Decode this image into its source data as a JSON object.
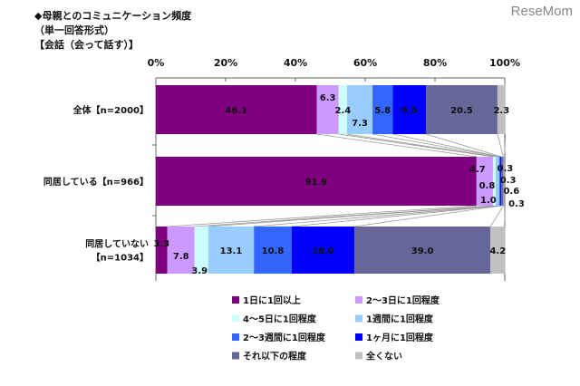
{
  "logo": "ReseMom",
  "chart_data": {
    "type": "bar",
    "orientation": "horizontal-stacked-100",
    "title": "◆母親とのコミュニケーション頻度",
    "subtitle": "（単一回答形式）",
    "subtitle2": "【会話（会って話す）】",
    "xlim": [
      0,
      100
    ],
    "xticks": [
      "0%",
      "20%",
      "40%",
      "60%",
      "80%",
      "100%"
    ],
    "categories": [
      "全体【n=2000】",
      "同居している【n=966】",
      "同居していない\n【n=1034】"
    ],
    "series": [
      {
        "name": "1日に1回以上",
        "color": "#7f007f",
        "values": [
          46.1,
          91.9,
          3.3
        ]
      },
      {
        "name": "2～3日に1回程度",
        "color": "#cc99ff",
        "values": [
          6.3,
          4.7,
          7.8
        ]
      },
      {
        "name": "4～5日に1回程度",
        "color": "#ccffff",
        "values": [
          2.4,
          0.8,
          3.9
        ]
      },
      {
        "name": "1週間に1回程度",
        "color": "#99ccff",
        "values": [
          7.3,
          1.0,
          13.1
        ]
      },
      {
        "name": "2～3週間に1回程度",
        "color": "#3366ff",
        "values": [
          5.8,
          0.3,
          10.8
        ]
      },
      {
        "name": "1ヶ月に1回程度",
        "color": "#0000ff",
        "values": [
          9.5,
          0.3,
          18.0
        ]
      },
      {
        "name": "それ以下の程度",
        "color": "#666699",
        "values": [
          20.5,
          0.6,
          39.0
        ]
      },
      {
        "name": "全くない",
        "color": "#c0c0c0",
        "values": [
          2.3,
          0.3,
          4.2
        ]
      }
    ],
    "legend": "bottom"
  }
}
